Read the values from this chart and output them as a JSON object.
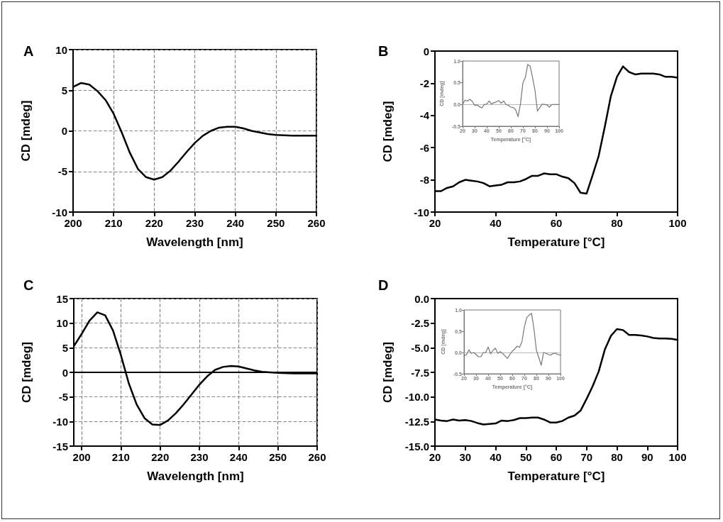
{
  "chart_data": [
    {
      "type": "line",
      "title": "A",
      "xlabel": "Wavelength [nm]",
      "ylabel": "CD [mdeg]",
      "xlim": [
        200,
        260
      ],
      "ylim": [
        -10,
        10
      ],
      "xticks": [
        200,
        210,
        220,
        230,
        240,
        250,
        260
      ],
      "yticks": [
        -10,
        -5,
        0,
        5,
        10
      ],
      "grid": true,
      "marker": "none",
      "x": [
        200,
        202,
        204,
        206,
        208,
        210,
        212,
        214,
        216,
        218,
        220,
        222,
        224,
        226,
        228,
        230,
        232,
        234,
        236,
        238,
        240,
        242,
        244,
        246,
        248,
        250,
        254,
        260
      ],
      "series": [
        {
          "color": "#000000",
          "values": [
            5.4,
            5.9,
            5.7,
            4.9,
            3.8,
            2.1,
            -0.2,
            -2.7,
            -4.7,
            -5.7,
            -6.0,
            -5.7,
            -4.9,
            -3.8,
            -2.6,
            -1.5,
            -0.6,
            0.0,
            0.4,
            0.5,
            0.5,
            0.3,
            0.0,
            -0.2,
            -0.4,
            -0.5,
            -0.6,
            -0.6
          ]
        }
      ]
    },
    {
      "type": "line",
      "title": "B",
      "xlabel": "Temperature [°C]",
      "ylabel": "CD [mdeg]",
      "xlim": [
        20,
        100
      ],
      "ylim": [
        -10,
        0
      ],
      "xticks": [
        20,
        40,
        60,
        80,
        100
      ],
      "yticks": [
        -10,
        -8,
        -6,
        -4,
        -2,
        0
      ],
      "marker": "none",
      "x": [
        20,
        22,
        24,
        26,
        28,
        30,
        32,
        34,
        36,
        38,
        40,
        42,
        44,
        46,
        48,
        50,
        52,
        54,
        56,
        58,
        60,
        62,
        64,
        66,
        68,
        70,
        72,
        74,
        76,
        78,
        80,
        82,
        84,
        86,
        88,
        90,
        92,
        94,
        96,
        98,
        100
      ],
      "series": [
        {
          "color": "#000000",
          "values": [
            -8.7,
            -8.7,
            -8.5,
            -8.4,
            -8.15,
            -8.0,
            -8.05,
            -8.1,
            -8.2,
            -8.4,
            -8.35,
            -8.3,
            -8.15,
            -8.15,
            -8.1,
            -7.95,
            -7.75,
            -7.75,
            -7.6,
            -7.65,
            -7.65,
            -7.8,
            -7.9,
            -8.2,
            -8.8,
            -8.85,
            -7.7,
            -6.5,
            -4.7,
            -2.8,
            -1.6,
            -0.95,
            -1.3,
            -1.45,
            -1.4,
            -1.4,
            -1.4,
            -1.45,
            -1.6,
            -1.6,
            -1.65
          ]
        }
      ]
    },
    {
      "type": "line",
      "xlabel": "Temperature [°C]",
      "ylabel": "CD [mdeg]",
      "xlim": [
        20,
        100
      ],
      "ylim": [
        -0.5,
        1.0
      ],
      "xticks": [
        20,
        30,
        40,
        50,
        60,
        70,
        80,
        90,
        100
      ],
      "yticks": [
        {
          "value": -0.5,
          "label": "-0.5"
        },
        {
          "value": 0,
          "label": "0.0"
        },
        {
          "value": 0.5,
          "label": "0.5"
        },
        {
          "value": 1.0,
          "label": "1.0"
        }
      ],
      "marker": "none",
      "ref_lines": [
        {
          "axis": "y",
          "value": 0,
          "color": "#bbbbbb"
        }
      ],
      "x": [
        20,
        22,
        24,
        26,
        28,
        30,
        32,
        34,
        36,
        38,
        40,
        42,
        44,
        46,
        48,
        50,
        52,
        54,
        56,
        58,
        60,
        62,
        64,
        66,
        68,
        70,
        72,
        74,
        76,
        78,
        80,
        82,
        84,
        86,
        88,
        90,
        92,
        94,
        96,
        98,
        100
      ],
      "series": [
        {
          "color": "#777777",
          "values": [
            0.0,
            0.1,
            0.08,
            0.12,
            0.07,
            -0.02,
            -0.01,
            -0.05,
            -0.08,
            0.0,
            0.01,
            0.08,
            0.01,
            0.04,
            0.06,
            0.09,
            0.03,
            0.08,
            0.0,
            -0.02,
            -0.06,
            -0.07,
            -0.12,
            -0.28,
            0.02,
            0.5,
            0.62,
            0.92,
            0.88,
            0.62,
            0.33,
            -0.15,
            -0.07,
            0.01,
            0.0,
            -0.01,
            -0.06,
            0.0,
            0.0,
            0.0,
            0.0
          ]
        }
      ]
    },
    {
      "type": "line",
      "title": "C",
      "xlabel": "Wavelength [nm]",
      "ylabel": "CD [mdeg]",
      "xlim": [
        198,
        260
      ],
      "ylim": [
        -15,
        15
      ],
      "xticks": [
        200,
        210,
        220,
        230,
        240,
        250,
        260
      ],
      "yticks": [
        -15,
        -10,
        -5,
        0,
        5,
        10,
        15
      ],
      "grid": true,
      "marker": "none",
      "ref_lines": [
        {
          "axis": "y",
          "value": 0,
          "color": "#000000"
        }
      ],
      "x": [
        198,
        200,
        202,
        204,
        206,
        208,
        210,
        212,
        214,
        216,
        218,
        220,
        222,
        224,
        226,
        228,
        230,
        232,
        234,
        236,
        238,
        240,
        242,
        244,
        246,
        248,
        250,
        254,
        260
      ],
      "series": [
        {
          "color": "#000000",
          "values": [
            5.3,
            7.8,
            10.5,
            12.2,
            11.6,
            8.5,
            3.5,
            -2.2,
            -6.5,
            -9.3,
            -10.6,
            -10.7,
            -9.8,
            -8.3,
            -6.5,
            -4.5,
            -2.5,
            -0.8,
            0.5,
            1.1,
            1.3,
            1.2,
            0.8,
            0.4,
            0.1,
            0.0,
            -0.1,
            -0.2,
            -0.2
          ]
        }
      ]
    },
    {
      "type": "line",
      "title": "D",
      "xlabel": "Temperature [°C]",
      "ylabel": "CD [mdeg]",
      "xlim": [
        20,
        100
      ],
      "ylim": [
        -15,
        0
      ],
      "xticks": [
        20,
        30,
        40,
        50,
        60,
        70,
        80,
        90,
        100
      ],
      "yticks": [
        {
          "value": -15,
          "label": "-15.0"
        },
        {
          "value": -12.5,
          "label": "-12.5"
        },
        {
          "value": -10,
          "label": "-10.0"
        },
        {
          "value": -7.5,
          "label": "-7.5"
        },
        {
          "value": -5,
          "label": "-5.0"
        },
        {
          "value": -2.5,
          "label": "-2.5"
        },
        {
          "value": 0,
          "label": "0.0"
        }
      ],
      "marker": "none",
      "x": [
        20,
        22,
        24,
        26,
        28,
        30,
        32,
        34,
        36,
        38,
        40,
        42,
        44,
        46,
        48,
        50,
        52,
        54,
        56,
        58,
        60,
        62,
        64,
        66,
        68,
        70,
        72,
        74,
        76,
        78,
        80,
        82,
        84,
        86,
        88,
        90,
        92,
        94,
        96,
        98,
        100
      ],
      "series": [
        {
          "color": "#000000",
          "values": [
            -12.3,
            -12.4,
            -12.45,
            -12.3,
            -12.4,
            -12.35,
            -12.45,
            -12.65,
            -12.8,
            -12.75,
            -12.7,
            -12.4,
            -12.45,
            -12.35,
            -12.15,
            -12.15,
            -12.1,
            -12.1,
            -12.3,
            -12.6,
            -12.6,
            -12.45,
            -12.1,
            -11.9,
            -11.4,
            -10.2,
            -8.9,
            -7.4,
            -5.2,
            -3.8,
            -3.1,
            -3.2,
            -3.7,
            -3.7,
            -3.75,
            -3.85,
            -4.0,
            -4.05,
            -4.05,
            -4.1,
            -4.2
          ]
        }
      ]
    },
    {
      "type": "line",
      "xlabel": "Temperature [°C]",
      "ylabel": "CD [mdeg]",
      "xlim": [
        20,
        100
      ],
      "ylim": [
        -0.5,
        1.0
      ],
      "xticks": [
        20,
        30,
        40,
        50,
        60,
        70,
        80,
        90,
        100
      ],
      "yticks": [
        {
          "value": -0.5,
          "label": "-0.5"
        },
        {
          "value": 0,
          "label": "0.0"
        },
        {
          "value": 0.5,
          "label": "0.5"
        },
        {
          "value": 1.0,
          "label": "1.0"
        }
      ],
      "marker": "none",
      "ref_lines": [
        {
          "axis": "y",
          "value": 0,
          "color": "#bbbbbb"
        }
      ],
      "x": [
        20,
        22,
        24,
        26,
        28,
        30,
        32,
        34,
        36,
        38,
        40,
        42,
        44,
        46,
        48,
        50,
        52,
        54,
        56,
        58,
        60,
        62,
        64,
        66,
        68,
        70,
        72,
        74,
        76,
        78,
        80,
        82,
        84,
        86,
        88,
        90,
        92,
        94,
        96,
        98,
        100
      ],
      "series": [
        {
          "color": "#777777",
          "values": [
            -0.08,
            -0.05,
            0.06,
            -0.02,
            0.0,
            -0.05,
            -0.1,
            -0.1,
            0.0,
            0.0,
            0.13,
            -0.03,
            0.05,
            0.1,
            -0.02,
            0.02,
            -0.02,
            -0.08,
            -0.14,
            -0.05,
            0.03,
            0.08,
            0.15,
            0.12,
            0.25,
            0.6,
            0.82,
            0.88,
            0.92,
            0.55,
            0.05,
            -0.12,
            -0.3,
            0.0,
            -0.02,
            -0.05,
            -0.06,
            -0.02,
            -0.02,
            -0.05,
            -0.06
          ]
        }
      ]
    }
  ]
}
